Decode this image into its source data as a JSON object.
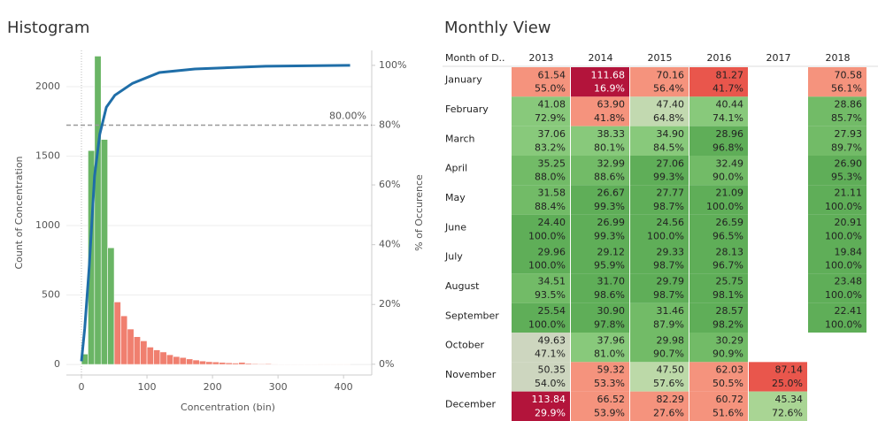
{
  "chart_data": [
    {
      "type": "histogram",
      "title": "Histogram",
      "x_label": "Concentration (bin)",
      "y_label": "Count of Concentration",
      "y2_label": "% of Occurence",
      "bins": [
        0,
        10,
        20,
        30,
        40,
        50,
        60,
        70,
        80,
        90,
        100,
        110,
        120,
        130,
        140,
        150,
        160,
        170,
        180,
        190,
        200,
        210,
        220,
        230,
        240,
        250,
        260,
        270,
        280,
        290,
        300,
        310,
        320,
        330,
        340,
        350,
        360,
        370,
        380,
        390,
        400,
        410
      ],
      "values": [
        75,
        1540,
        2220,
        1620,
        840,
        450,
        350,
        255,
        200,
        170,
        125,
        105,
        90,
        70,
        57,
        50,
        40,
        32,
        25,
        20,
        18,
        15,
        12,
        10,
        15,
        8,
        6,
        5,
        6,
        4,
        3,
        3,
        2,
        2,
        3,
        2,
        1,
        1,
        1,
        1,
        1
      ],
      "colors": [
        "#6ab565",
        "#6ab565",
        "#6ab565",
        "#6ab565",
        "#6ab565",
        "#f07f6f",
        "#f07f6f",
        "#f07f6f",
        "#f07f6f",
        "#f07f6f",
        "#f07f6f",
        "#f07f6f",
        "#f07f6f",
        "#f07f6f",
        "#f07f6f",
        "#f07f6f",
        "#f07f6f",
        "#f07f6f",
        "#f07f6f",
        "#f07f6f",
        "#f07f6f",
        "#f07f6f",
        "#f07f6f",
        "#f07f6f",
        "#f07f6f",
        "#f07f6f",
        "#f07f6f",
        "#f07f6f",
        "#f07f6f",
        "#f07f6f",
        "#f07f6f",
        "#f07f6f",
        "#f07f6f",
        "#f07f6f",
        "#f07f6f",
        "#f07f6f",
        "#f07f6f",
        "#f07f6f",
        "#f07f6f",
        "#f07f6f",
        "#f07f6f"
      ],
      "line": {
        "color": "#1f6ea8",
        "axis": "y2",
        "x": [
          0,
          5,
          12,
          20,
          28,
          38,
          51,
          78,
          119,
          173,
          281,
          410
        ],
        "values": [
          1,
          12,
          33,
          63,
          77,
          86,
          90,
          94,
          97.6,
          98.8,
          99.7,
          100
        ]
      },
      "reference_line": {
        "value": 80,
        "label": "80.00%",
        "axis": "y2"
      },
      "xlim": [
        -23,
        443
      ],
      "ylim": [
        -76,
        2261
      ],
      "y2lim": [
        -3.6,
        105
      ],
      "xticks": [
        0,
        100,
        200,
        300,
        400
      ],
      "yticks": [
        0,
        500,
        1000,
        1500,
        2000
      ],
      "y2ticks": [
        {
          "value": 0,
          "label": "0%"
        },
        {
          "value": 20,
          "label": "20%"
        },
        {
          "value": 40,
          "label": "40%"
        },
        {
          "value": 60,
          "label": "60%"
        },
        {
          "value": 80,
          "label": "80%"
        },
        {
          "value": 100,
          "label": "100%"
        }
      ],
      "grid": true
    },
    {
      "type": "heatmap",
      "title": "Monthly View",
      "row_header": "Month of D..",
      "columns": [
        "2013",
        "2014",
        "2015",
        "2016",
        "2017",
        "2018"
      ],
      "rows": [
        {
          "label": "January",
          "cells": [
            {
              "value": "61.54",
              "share": "55.0%",
              "color": "#f5937d"
            },
            {
              "value": "111.68",
              "share": "16.9%",
              "color": "#b3143b"
            },
            {
              "value": "70.16",
              "share": "56.4%",
              "color": "#f5937d"
            },
            {
              "value": "81.27",
              "share": "41.7%",
              "color": "#e9564c"
            },
            null,
            {
              "value": "70.58",
              "share": "56.1%",
              "color": "#f5937d"
            }
          ]
        },
        {
          "label": "February",
          "cells": [
            {
              "value": "41.08",
              "share": "72.9%",
              "color": "#88c97b"
            },
            {
              "value": "63.90",
              "share": "41.8%",
              "color": "#f5937d"
            },
            {
              "value": "47.40",
              "share": "64.8%",
              "color": "#c2d9b0"
            },
            {
              "value": "40.44",
              "share": "74.1%",
              "color": "#88c97b"
            },
            null,
            {
              "value": "28.86",
              "share": "85.7%",
              "color": "#72bb67"
            }
          ]
        },
        {
          "label": "March",
          "cells": [
            {
              "value": "37.06",
              "share": "83.2%",
              "color": "#88c97b"
            },
            {
              "value": "38.33",
              "share": "80.1%",
              "color": "#88c97b"
            },
            {
              "value": "34.90",
              "share": "84.5%",
              "color": "#88c97b"
            },
            {
              "value": "28.96",
              "share": "96.8%",
              "color": "#5fae58"
            },
            null,
            {
              "value": "27.93",
              "share": "89.7%",
              "color": "#72bb67"
            }
          ]
        },
        {
          "label": "April",
          "cells": [
            {
              "value": "35.25",
              "share": "88.0%",
              "color": "#72bb67"
            },
            {
              "value": "32.99",
              "share": "88.6%",
              "color": "#72bb67"
            },
            {
              "value": "27.06",
              "share": "99.3%",
              "color": "#5fae58"
            },
            {
              "value": "32.49",
              "share": "90.0%",
              "color": "#72bb67"
            },
            null,
            {
              "value": "26.90",
              "share": "95.3%",
              "color": "#5fae58"
            }
          ]
        },
        {
          "label": "May",
          "cells": [
            {
              "value": "31.58",
              "share": "88.4%",
              "color": "#72bb67"
            },
            {
              "value": "26.67",
              "share": "99.3%",
              "color": "#5fae58"
            },
            {
              "value": "27.77",
              "share": "98.7%",
              "color": "#5fae58"
            },
            {
              "value": "21.09",
              "share": "100.0%",
              "color": "#5fae58"
            },
            null,
            {
              "value": "21.11",
              "share": "100.0%",
              "color": "#5fae58"
            }
          ]
        },
        {
          "label": "June",
          "cells": [
            {
              "value": "24.40",
              "share": "100.0%",
              "color": "#5fae58"
            },
            {
              "value": "26.99",
              "share": "99.3%",
              "color": "#5fae58"
            },
            {
              "value": "24.56",
              "share": "100.0%",
              "color": "#5fae58"
            },
            {
              "value": "26.59",
              "share": "96.5%",
              "color": "#5fae58"
            },
            null,
            {
              "value": "20.91",
              "share": "100.0%",
              "color": "#5fae58"
            }
          ]
        },
        {
          "label": "July",
          "cells": [
            {
              "value": "29.96",
              "share": "100.0%",
              "color": "#5fae58"
            },
            {
              "value": "29.12",
              "share": "95.9%",
              "color": "#5fae58"
            },
            {
              "value": "29.33",
              "share": "98.7%",
              "color": "#5fae58"
            },
            {
              "value": "28.13",
              "share": "96.7%",
              "color": "#5fae58"
            },
            null,
            {
              "value": "19.84",
              "share": "100.0%",
              "color": "#5fae58"
            }
          ]
        },
        {
          "label": "August",
          "cells": [
            {
              "value": "34.51",
              "share": "93.5%",
              "color": "#72bb67"
            },
            {
              "value": "31.70",
              "share": "98.6%",
              "color": "#5fae58"
            },
            {
              "value": "29.79",
              "share": "98.7%",
              "color": "#5fae58"
            },
            {
              "value": "25.75",
              "share": "98.1%",
              "color": "#5fae58"
            },
            null,
            {
              "value": "23.48",
              "share": "100.0%",
              "color": "#5fae58"
            }
          ]
        },
        {
          "label": "September",
          "cells": [
            {
              "value": "25.54",
              "share": "100.0%",
              "color": "#5fae58"
            },
            {
              "value": "30.90",
              "share": "97.8%",
              "color": "#5fae58"
            },
            {
              "value": "31.46",
              "share": "87.9%",
              "color": "#72bb67"
            },
            {
              "value": "28.57",
              "share": "98.2%",
              "color": "#5fae58"
            },
            null,
            {
              "value": "22.41",
              "share": "100.0%",
              "color": "#5fae58"
            }
          ]
        },
        {
          "label": "October",
          "cells": [
            {
              "value": "49.63",
              "share": "47.1%",
              "color": "#cdd6bf"
            },
            {
              "value": "37.96",
              "share": "81.0%",
              "color": "#88c97b"
            },
            {
              "value": "29.98",
              "share": "90.7%",
              "color": "#72bb67"
            },
            {
              "value": "30.29",
              "share": "90.9%",
              "color": "#72bb67"
            },
            null,
            null
          ]
        },
        {
          "label": "November",
          "cells": [
            {
              "value": "50.35",
              "share": "54.0%",
              "color": "#cdd6bf"
            },
            {
              "value": "59.32",
              "share": "53.3%",
              "color": "#f5937d"
            },
            {
              "value": "47.50",
              "share": "57.6%",
              "color": "#bcd9a8"
            },
            {
              "value": "62.03",
              "share": "50.5%",
              "color": "#f5937d"
            },
            {
              "value": "87.14",
              "share": "25.0%",
              "color": "#e9564c"
            },
            null
          ]
        },
        {
          "label": "December",
          "cells": [
            {
              "value": "113.84",
              "share": "29.9%",
              "color": "#b3143b"
            },
            {
              "value": "66.52",
              "share": "53.9%",
              "color": "#f5937d"
            },
            {
              "value": "82.29",
              "share": "27.6%",
              "color": "#f5937d"
            },
            {
              "value": "60.72",
              "share": "51.6%",
              "color": "#f5937d"
            },
            {
              "value": "45.34",
              "share": "72.6%",
              "color": "#a9d594"
            },
            null
          ]
        }
      ]
    }
  ]
}
